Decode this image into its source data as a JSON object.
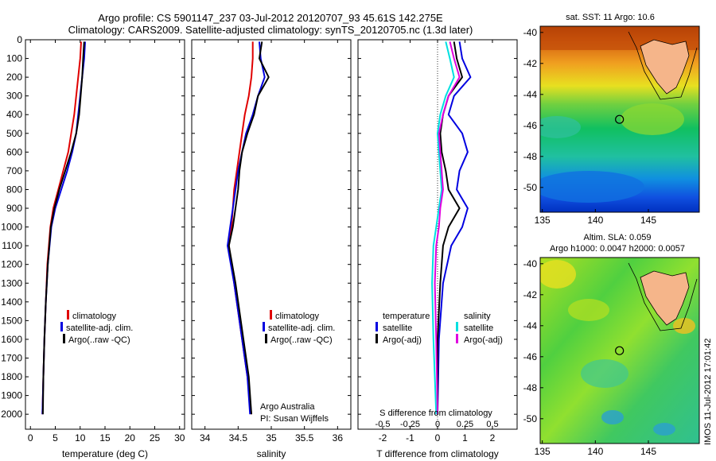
{
  "header": {
    "line1": "Argo profile: CS 5901147_237 03-Jul-2012 20120707_93 45.61S 142.275E",
    "line2": "Climatology: CARS2009. Satellite-adjusted climatology: synTS_20120705.nc (1.3d later)"
  },
  "footer_stamp": "IMOS 11-Jul-2012 17:01:42",
  "colors": {
    "climatology": "#e00000",
    "satellite": "#0000e0",
    "argo": "#000000",
    "satellite_salinity": "#00e0e0",
    "argo_salinity_adj": "#e000e0",
    "land": "#f5b58a"
  },
  "legend_lines": {
    "climatology": "climatology",
    "satellite_adj": "satellite-adj. clim.",
    "argo": "Argo(..raw -QC)"
  },
  "legend_diff": {
    "temperature": "temperature",
    "salinity": "salinity",
    "satellite": "satellite",
    "argo_adj": "Argo(-adj)"
  },
  "credits": {
    "line1": "Argo Australia",
    "line2": "PI: Susan Wijffels"
  },
  "map_sst": {
    "title": "sat. SST: 11 Argo: 10.6",
    "x_ticks": [
      "135",
      "140",
      "145"
    ],
    "y_ticks": [
      "-40",
      "-42",
      "-44",
      "-46",
      "-48",
      "-50"
    ],
    "float_lon": 142.275,
    "float_lat": -45.61
  },
  "map_sla": {
    "title1": "Altim. SLA: 0.059",
    "title2": "Argo h1000: 0.0047 h2000: 0.0057",
    "x_ticks": [
      "135",
      "140",
      "145"
    ],
    "y_ticks": [
      "-40",
      "-42",
      "-44",
      "-46",
      "-48",
      "-50"
    ],
    "float_lon": 142.275,
    "float_lat": -45.61
  },
  "chart_data": [
    {
      "type": "line",
      "xlabel": "temperature (deg C)",
      "ylabel": "",
      "xlim": [
        -1,
        31
      ],
      "ylim": [
        2080,
        0
      ],
      "x_ticks": [
        "0",
        "5",
        "10",
        "15",
        "20",
        "25",
        "30"
      ],
      "y_ticks": [
        "0",
        "100",
        "200",
        "300",
        "400",
        "500",
        "600",
        "700",
        "800",
        "900",
        "1000",
        "1100",
        "1200",
        "1300",
        "1400",
        "1500",
        "1600",
        "1700",
        "1800",
        "1900",
        "2000"
      ],
      "series": [
        {
          "name": "climatology",
          "color": "#e00000",
          "x": [
            10.2,
            10.0,
            9.6,
            9.2,
            8.8,
            8.2,
            7.6,
            6.6,
            5.6,
            4.6,
            4.0,
            3.4,
            3.1,
            2.8,
            2.6,
            2.4
          ],
          "y": [
            10,
            100,
            200,
            300,
            400,
            500,
            600,
            700,
            800,
            900,
            1000,
            1200,
            1400,
            1600,
            1800,
            2000
          ]
        },
        {
          "name": "satellite-adj. clim.",
          "color": "#0000e0",
          "x": [
            11.0,
            10.8,
            10.4,
            10.0,
            9.6,
            9.2,
            8.4,
            7.4,
            6.2,
            5.0,
            4.2,
            3.5,
            3.1,
            2.8,
            2.6,
            2.4
          ],
          "y": [
            10,
            100,
            200,
            300,
            400,
            500,
            600,
            700,
            800,
            900,
            1000,
            1200,
            1400,
            1600,
            1800,
            2000
          ]
        },
        {
          "name": "Argo(..raw -QC)",
          "color": "#000000",
          "x": [
            10.8,
            10.6,
            10.4,
            10.1,
            9.8,
            9.2,
            8.2,
            7.0,
            5.8,
            4.8,
            4.1,
            3.5,
            3.1,
            2.8,
            2.6,
            2.5
          ],
          "y": [
            10,
            100,
            200,
            300,
            400,
            500,
            600,
            700,
            800,
            900,
            1000,
            1200,
            1400,
            1600,
            1800,
            2000
          ]
        }
      ]
    },
    {
      "type": "line",
      "xlabel": "salinity",
      "ylabel": "",
      "xlim": [
        33.8,
        36.2
      ],
      "ylim": [
        2080,
        0
      ],
      "x_ticks": [
        "34",
        "34.5",
        "35",
        "35.5",
        "36"
      ],
      "series": [
        {
          "name": "climatology",
          "color": "#e00000",
          "x": [
            34.72,
            34.72,
            34.7,
            34.66,
            34.6,
            34.56,
            34.52,
            34.48,
            34.44,
            34.42,
            34.4,
            34.36,
            34.44,
            34.56,
            34.64,
            34.7
          ],
          "y": [
            10,
            100,
            200,
            300,
            400,
            500,
            600,
            700,
            800,
            900,
            1000,
            1100,
            1300,
            1600,
            1800,
            2000
          ]
        },
        {
          "name": "satellite-adj. clim.",
          "color": "#0000e0",
          "x": [
            34.82,
            34.84,
            34.9,
            34.8,
            34.72,
            34.62,
            34.56,
            34.5,
            34.46,
            34.42,
            34.38,
            34.34,
            34.44,
            34.56,
            34.64,
            34.68
          ],
          "y": [
            10,
            100,
            200,
            300,
            400,
            500,
            600,
            700,
            800,
            900,
            1000,
            1100,
            1300,
            1600,
            1800,
            2000
          ]
        },
        {
          "name": "Argo(..raw -QC)",
          "color": "#000000",
          "x": [
            34.86,
            34.82,
            34.96,
            34.8,
            34.74,
            34.64,
            34.56,
            34.52,
            34.5,
            34.46,
            34.42,
            34.36,
            34.46,
            34.58,
            34.66,
            34.7
          ],
          "y": [
            10,
            100,
            200,
            300,
            400,
            500,
            600,
            700,
            800,
            900,
            1000,
            1100,
            1300,
            1600,
            1800,
            2000
          ]
        }
      ]
    },
    {
      "type": "line",
      "xlabel": "T difference from climatology",
      "xlabel_top": "S difference from climatology",
      "ylabel": "",
      "xlim": [
        -2.9,
        2.9
      ],
      "ylim": [
        2080,
        0
      ],
      "x_ticks": [
        "-2",
        "-1",
        "0",
        "1",
        "2"
      ],
      "x_ticks_top": [
        "-0.5",
        "-0.25",
        "0",
        "0.25",
        "0.5"
      ],
      "series": [
        {
          "name": "temperature satellite",
          "color": "#0000e0",
          "x": [
            0.8,
            0.9,
            1.2,
            0.6,
            0.4,
            0.9,
            1.1,
            0.8,
            0.7,
            1.1,
            0.9,
            0.5,
            0.2,
            0.05,
            0.0
          ],
          "y": [
            10,
            100,
            200,
            300,
            400,
            500,
            600,
            700,
            800,
            900,
            1000,
            1100,
            1300,
            1600,
            2000
          ]
        },
        {
          "name": "temperature Argo(-adj)",
          "color": "#000000",
          "x": [
            0.6,
            0.7,
            0.9,
            0.4,
            0.2,
            0.1,
            0.15,
            0.3,
            0.4,
            0.8,
            0.4,
            0.2,
            0.1,
            0.0,
            0.0
          ],
          "y": [
            10,
            100,
            200,
            300,
            400,
            500,
            600,
            700,
            800,
            900,
            1000,
            1100,
            1300,
            1600,
            2000
          ]
        },
        {
          "name": "salinity satellite",
          "color": "#00e0e0",
          "x": [
            0.3,
            0.45,
            0.6,
            0.3,
            0.1,
            0.0,
            0.05,
            0.1,
            0.15,
            0.05,
            -0.05,
            -0.15,
            -0.2,
            -0.15,
            -0.05
          ],
          "y": [
            10,
            100,
            200,
            300,
            400,
            500,
            600,
            700,
            800,
            900,
            1000,
            1100,
            1300,
            1600,
            2000
          ]
        },
        {
          "name": "salinity Argo(-adj)",
          "color": "#e000e0",
          "x": [
            0.45,
            0.6,
            0.8,
            0.4,
            0.2,
            0.05,
            0.1,
            0.15,
            0.2,
            0.1,
            0.05,
            -0.05,
            -0.1,
            -0.05,
            0.0
          ],
          "y": [
            10,
            100,
            200,
            300,
            400,
            500,
            600,
            700,
            800,
            900,
            1000,
            1100,
            1300,
            1600,
            2000
          ]
        }
      ]
    }
  ]
}
